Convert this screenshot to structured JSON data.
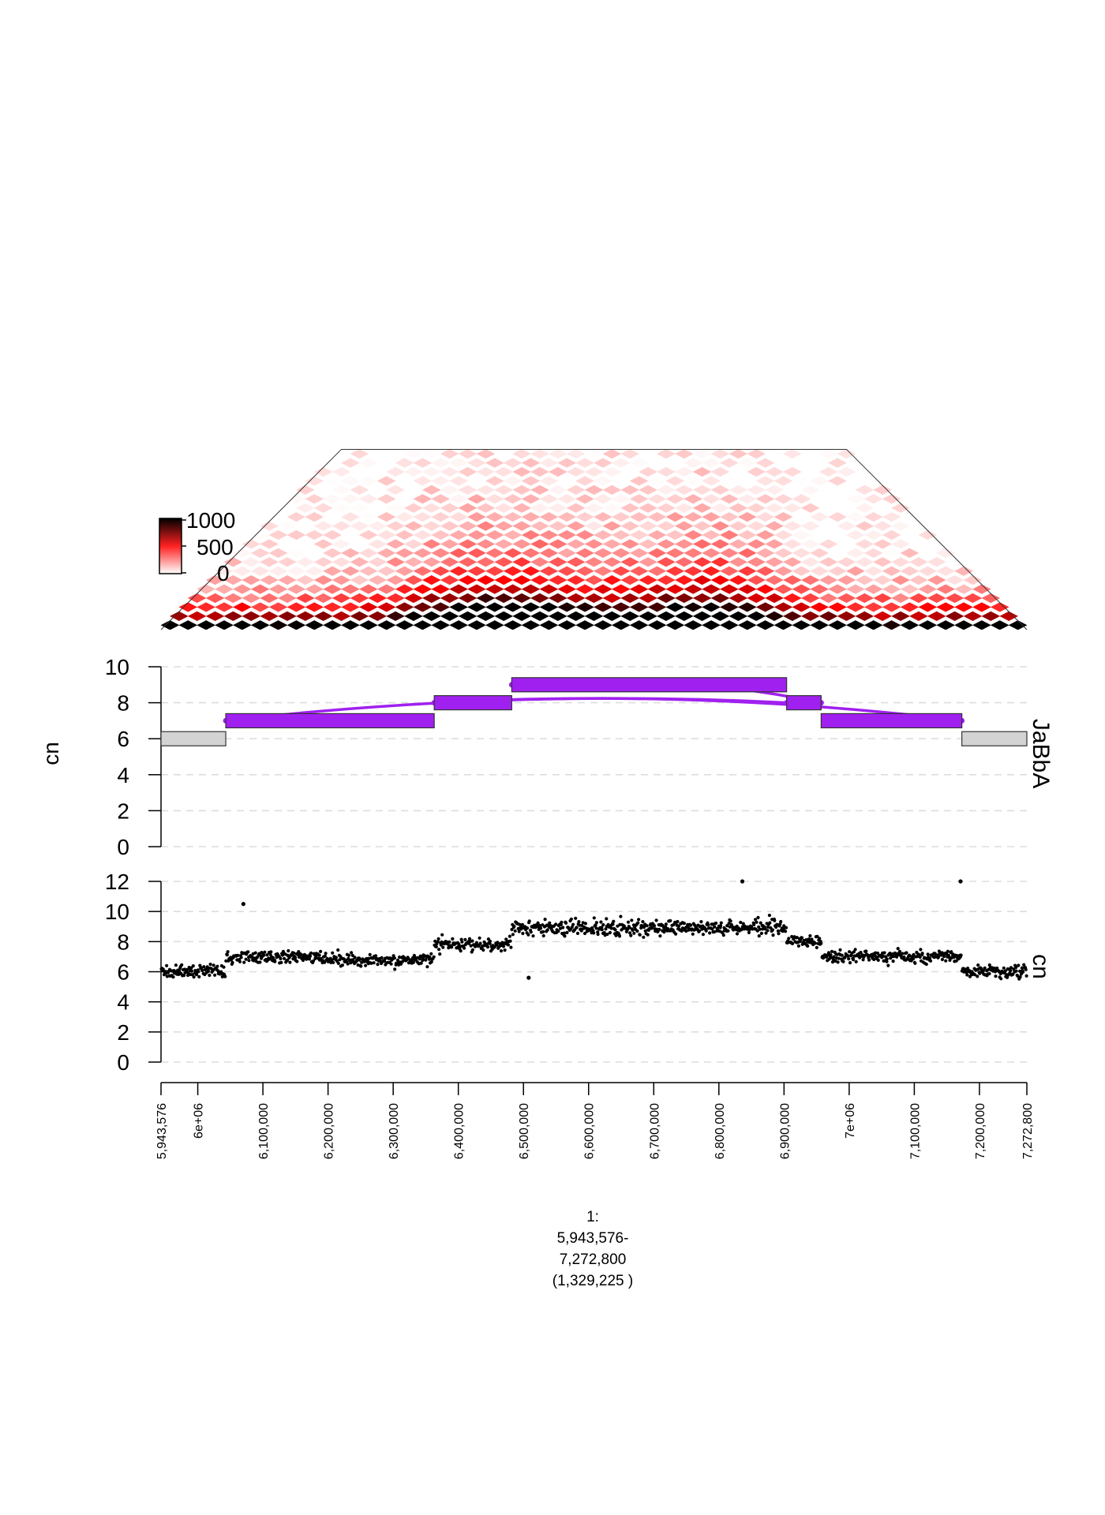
{
  "chart_data": [
    {
      "type": "heatmap",
      "track": "hic",
      "legend": {
        "ticks": [
          "1000",
          "500",
          "0"
        ],
        "colors": [
          "#000000",
          "#ff0000",
          "#ffffff"
        ]
      },
      "description_values": {
        "diagonal_max": 1000,
        "hotspots_bp": [
          6400000,
          6455000,
          6580000,
          6760000,
          6800000
        ]
      }
    },
    {
      "type": "line",
      "track": "jabba",
      "side_label": "JaBbA",
      "ylabel": "cn",
      "ylim": [
        0,
        10
      ],
      "yticks": [
        "0",
        "2",
        "4",
        "6",
        "8",
        "10"
      ],
      "segments": [
        {
          "start": 5943576,
          "end": 6043000,
          "cn": 6,
          "color": "#d3d3d3"
        },
        {
          "start": 6043000,
          "end": 6363000,
          "cn": 7,
          "color": "#a020f0"
        },
        {
          "start": 6363000,
          "end": 6482000,
          "cn": 8,
          "color": "#a020f0"
        },
        {
          "start": 6482000,
          "end": 6904000,
          "cn": 9,
          "color": "#a020f0"
        },
        {
          "start": 6904000,
          "end": 6957000,
          "cn": 8,
          "color": "#a020f0"
        },
        {
          "start": 6957000,
          "end": 7173000,
          "cn": 7,
          "color": "#a020f0"
        },
        {
          "start": 7173000,
          "end": 7272800,
          "cn": 6,
          "color": "#d3d3d3"
        }
      ],
      "junctions": [
        {
          "from": 6043000,
          "from_cn": 7,
          "to": 6904000,
          "to_cn": 8
        },
        {
          "from": 6363000,
          "from_cn": 8,
          "to": 7173000,
          "to_cn": 7
        },
        {
          "from": 6482000,
          "from_cn": 9,
          "to": 6957000,
          "to_cn": 8
        }
      ]
    },
    {
      "type": "scatter",
      "track": "coverage",
      "side_label": "cn",
      "ylim": [
        0,
        12
      ],
      "yticks": [
        "0",
        "2",
        "4",
        "6",
        "8",
        "10",
        "12"
      ],
      "levels": [
        {
          "start": 5943576,
          "end": 6043000,
          "cn": 6.0
        },
        {
          "start": 6043000,
          "end": 6200000,
          "cn": 7.0
        },
        {
          "start": 6200000,
          "end": 6363000,
          "cn": 6.8
        },
        {
          "start": 6363000,
          "end": 6482000,
          "cn": 7.8
        },
        {
          "start": 6482000,
          "end": 6904000,
          "cn": 8.9
        },
        {
          "start": 6904000,
          "end": 6957000,
          "cn": 8.0
        },
        {
          "start": 6957000,
          "end": 7173000,
          "cn": 7.0
        },
        {
          "start": 7173000,
          "end": 7272800,
          "cn": 6.0
        }
      ],
      "outliers": [
        {
          "x": 6070000,
          "y": 10.5
        },
        {
          "x": 6836000,
          "y": 12.0
        },
        {
          "x": 7171000,
          "y": 12.0
        },
        {
          "x": 6508000,
          "y": 5.6
        }
      ]
    }
  ],
  "x_axis": {
    "range": [
      5943576,
      7272800
    ],
    "ticks": [
      {
        "pos": 5943576,
        "label": "5,943,576"
      },
      {
        "pos": 6000000,
        "label": "6e+06"
      },
      {
        "pos": 6100000,
        "label": "6,100,000"
      },
      {
        "pos": 6200000,
        "label": "6,200,000"
      },
      {
        "pos": 6300000,
        "label": "6,300,000"
      },
      {
        "pos": 6400000,
        "label": "6,400,000"
      },
      {
        "pos": 6500000,
        "label": "6,500,000"
      },
      {
        "pos": 6600000,
        "label": "6,600,000"
      },
      {
        "pos": 6700000,
        "label": "6,700,000"
      },
      {
        "pos": 6800000,
        "label": "6,800,000"
      },
      {
        "pos": 6900000,
        "label": "6,900,000"
      },
      {
        "pos": 7000000,
        "label": "7e+06"
      },
      {
        "pos": 7100000,
        "label": "7,100,000"
      },
      {
        "pos": 7200000,
        "label": "7,200,000"
      },
      {
        "pos": 7272800,
        "label": "7,272,800"
      }
    ]
  },
  "caption": {
    "line1": "1:",
    "line2": "5,943,576-",
    "line3": "7,272,800",
    "line4": "(1,329,225 )"
  }
}
